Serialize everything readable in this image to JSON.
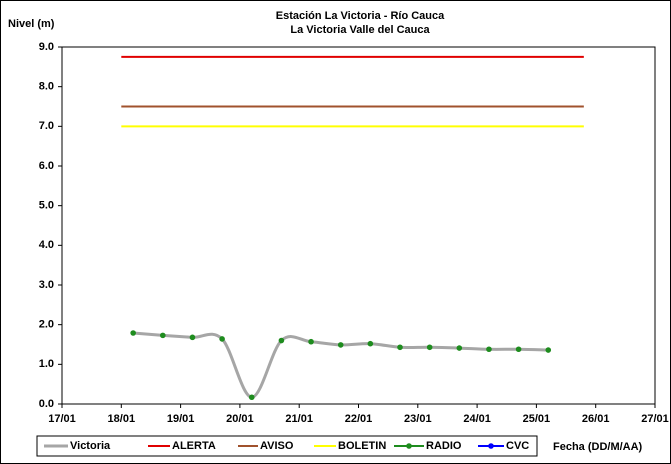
{
  "chart_data": {
    "type": "line",
    "title": "Estación La Victoria - Río Cauca",
    "subtitle": "La Victoria Valle del Cauca",
    "y_label": "Nivel (m)",
    "x_label": "Fecha (DD/M/AA)",
    "xlim": [
      17,
      27
    ],
    "xticks": [
      {
        "value": 17,
        "label": "17/01"
      },
      {
        "value": 18,
        "label": "18/01"
      },
      {
        "value": 19,
        "label": "19/01"
      },
      {
        "value": 20,
        "label": "20/01"
      },
      {
        "value": 21,
        "label": "21/01"
      },
      {
        "value": 22,
        "label": "22/01"
      },
      {
        "value": 23,
        "label": "23/01"
      },
      {
        "value": 24,
        "label": "24/01"
      },
      {
        "value": 25,
        "label": "25/01"
      },
      {
        "value": 26,
        "label": "26/01"
      },
      {
        "value": 27,
        "label": "27/01"
      }
    ],
    "ylim": [
      0,
      9
    ],
    "yticks": [
      {
        "value": 0,
        "label": "0.0"
      },
      {
        "value": 1,
        "label": "1.0"
      },
      {
        "value": 2,
        "label": "2.0"
      },
      {
        "value": 3,
        "label": "3.0"
      },
      {
        "value": 4,
        "label": "4.0"
      },
      {
        "value": 5,
        "label": "5.0"
      },
      {
        "value": 6,
        "label": "6.0"
      },
      {
        "value": 7,
        "label": "7.0"
      },
      {
        "value": 8,
        "label": "8.0"
      },
      {
        "value": 9,
        "label": "9.0"
      }
    ],
    "series": [
      {
        "name": "Victoria",
        "color": "#a6a6a6",
        "style": "smooth",
        "x": [
          18.2,
          18.7,
          19.2,
          19.7,
          20.2,
          20.7,
          21.2,
          21.7,
          22.2,
          22.7,
          23.2,
          23.7,
          24.2,
          24.7,
          25.2
        ],
        "values": [
          1.79,
          1.73,
          1.68,
          1.64,
          0.17,
          1.6,
          1.57,
          1.49,
          1.52,
          1.43,
          1.43,
          1.41,
          1.38,
          1.38,
          1.36
        ]
      },
      {
        "name": "ALERTA",
        "color": "#e00000",
        "style": "line",
        "x": [
          18.0,
          25.8
        ],
        "values": [
          8.75,
          8.75
        ]
      },
      {
        "name": "AVISO",
        "color": "#a0522d",
        "style": "line",
        "x": [
          18.0,
          25.8
        ],
        "values": [
          7.5,
          7.5
        ]
      },
      {
        "name": "BOLETIN",
        "color": "#ffff00",
        "style": "line",
        "x": [
          18.0,
          25.8
        ],
        "values": [
          7.0,
          7.0
        ]
      },
      {
        "name": "RADIO",
        "color": "#1e8c1e",
        "style": "markers",
        "x": [
          18.2,
          18.7,
          19.2,
          19.7,
          20.2,
          20.7,
          21.2,
          21.7,
          22.2,
          22.7,
          23.2,
          23.7,
          24.2,
          24.7,
          25.2
        ],
        "values": [
          1.79,
          1.73,
          1.68,
          1.64,
          0.17,
          1.6,
          1.57,
          1.49,
          1.52,
          1.43,
          1.43,
          1.41,
          1.38,
          1.38,
          1.36
        ]
      },
      {
        "name": "CVC",
        "color": "#0000ff",
        "style": "markers",
        "x": [],
        "values": []
      }
    ]
  }
}
